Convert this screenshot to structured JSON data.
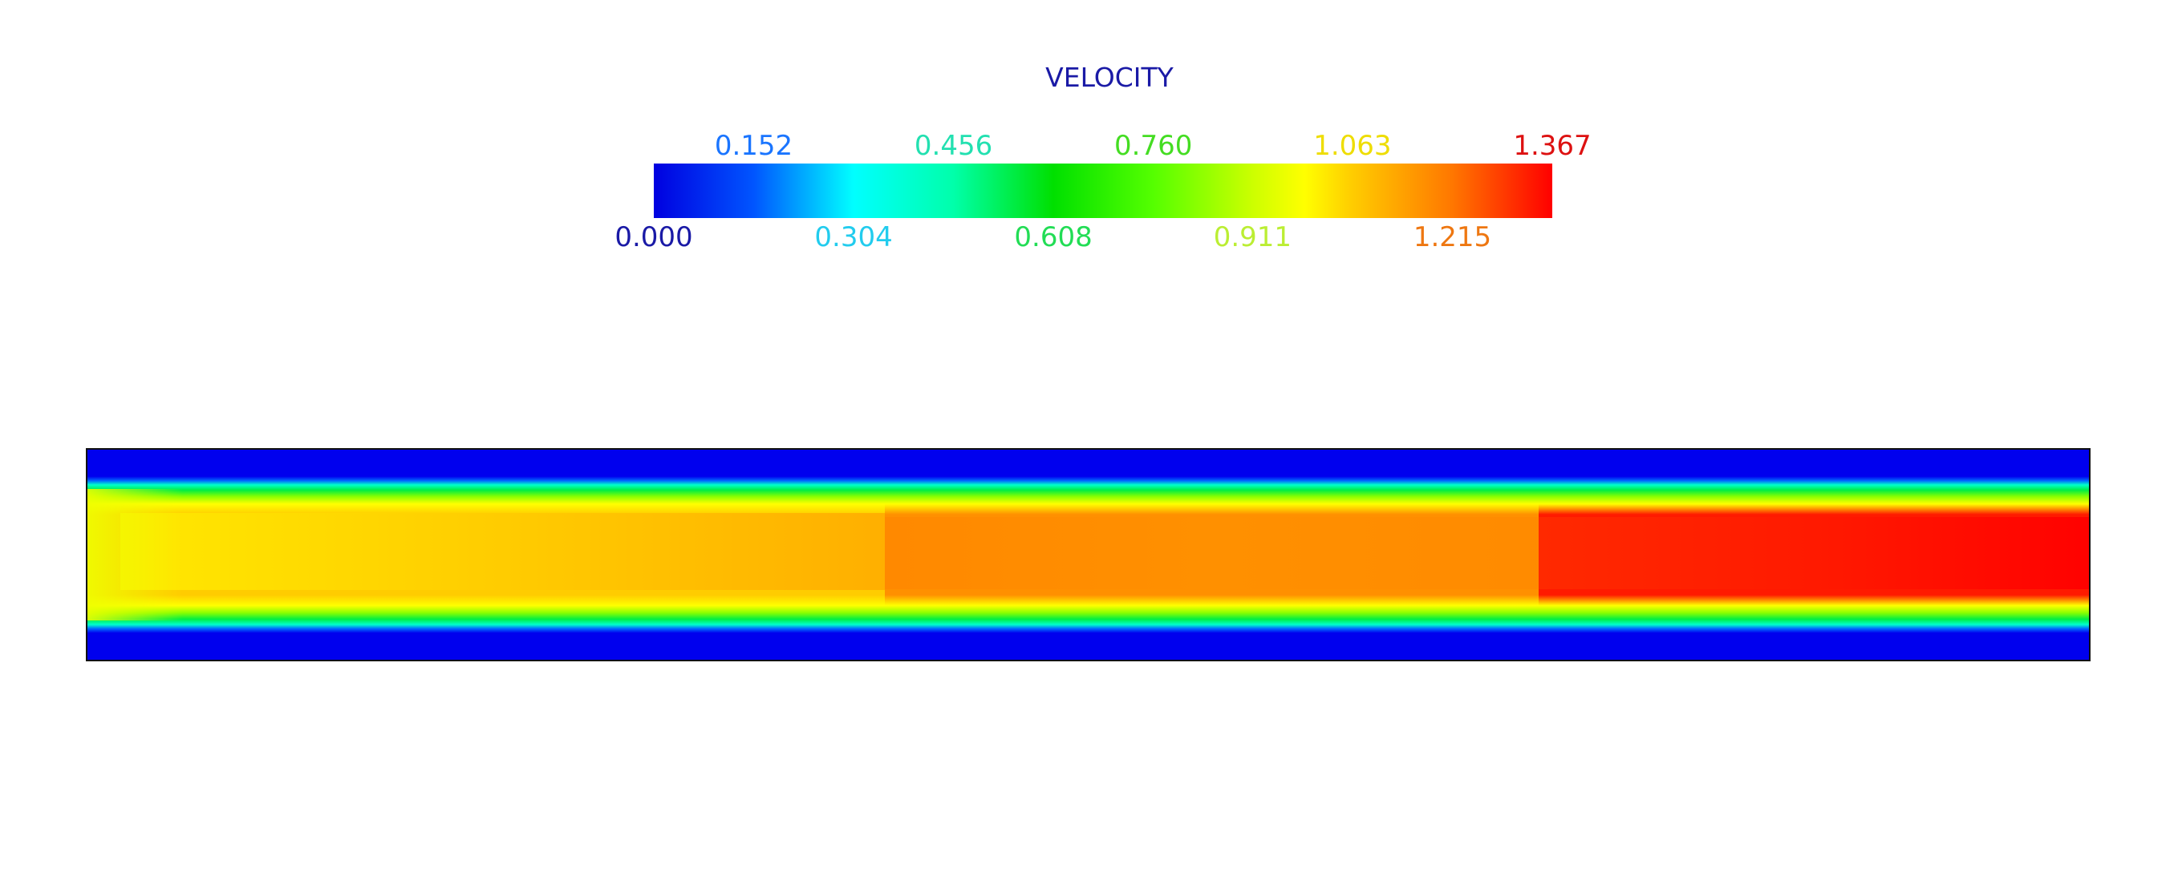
{
  "legend": {
    "title": "VELOCITY",
    "title_color": "#1a1aa6",
    "min": 0.0,
    "max": 1.367,
    "gradient_stops": [
      {
        "value": 0.0,
        "color": "#0000e0"
      },
      {
        "value": 0.152,
        "color": "#0055ff"
      },
      {
        "value": 0.304,
        "color": "#00ffff"
      },
      {
        "value": 0.456,
        "color": "#00ffaa"
      },
      {
        "value": 0.608,
        "color": "#00e000"
      },
      {
        "value": 0.76,
        "color": "#55ff00"
      },
      {
        "value": 0.911,
        "color": "#ccff00"
      },
      {
        "value": 0.99,
        "color": "#ffff00"
      },
      {
        "value": 1.063,
        "color": "#ffcc00"
      },
      {
        "value": 1.215,
        "color": "#ff7700"
      },
      {
        "value": 1.367,
        "color": "#ff0000"
      }
    ],
    "ticks_top": [
      {
        "label": "0.152",
        "value": 0.152,
        "color": "#1a75ff"
      },
      {
        "label": "0.456",
        "value": 0.456,
        "color": "#22e0b0"
      },
      {
        "label": "0.760",
        "value": 0.76,
        "color": "#44dd22"
      },
      {
        "label": "1.063",
        "value": 1.063,
        "color": "#eedd00"
      },
      {
        "label": "1.367",
        "value": 1.367,
        "color": "#dd1111"
      }
    ],
    "ticks_bottom": [
      {
        "label": "0.000",
        "value": 0.0,
        "color": "#1a1aa6"
      },
      {
        "label": "0.304",
        "value": 0.304,
        "color": "#22ccee"
      },
      {
        "label": "0.608",
        "value": 0.608,
        "color": "#22dd55"
      },
      {
        "label": "0.911",
        "value": 0.911,
        "color": "#bbee33"
      },
      {
        "label": "1.215",
        "value": 1.215,
        "color": "#ee7711"
      }
    ]
  },
  "channel": {
    "wall_color": "#0000ee",
    "segments": [
      {
        "name": "inlet-segment",
        "core_velocity": 1.07,
        "core_color_start": "#ffee00",
        "core_color_mid": "#ffcc00",
        "core_color_end": "#ffaa00"
      },
      {
        "name": "middle-segment",
        "core_velocity": 1.2,
        "core_color_start": "#ff8800",
        "core_color_mid": "#ff9000",
        "core_color_end": "#ff8a00"
      },
      {
        "name": "outlet-segment",
        "core_velocity": 1.367,
        "core_color_start": "#ff2a00",
        "core_color_mid": "#ff1a00",
        "core_color_end": "#ff0000"
      }
    ]
  }
}
